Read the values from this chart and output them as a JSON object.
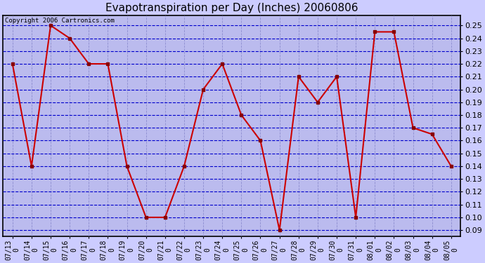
{
  "title": "Evapotranspiration per Day (Inches) 20060806",
  "copyright": "Copyright 2006 Cartronics.com",
  "x_labels": [
    "07/13",
    "07/14",
    "07/15",
    "07/16",
    "07/17",
    "07/18",
    "07/19",
    "07/20",
    "07/21",
    "07/22",
    "07/23",
    "07/24",
    "07/25",
    "07/26",
    "07/27",
    "07/28",
    "07/29",
    "07/30",
    "07/31",
    "08/01",
    "08/02",
    "08/03",
    "08/04",
    "08/05"
  ],
  "values": [
    0.22,
    0.14,
    0.25,
    0.24,
    0.22,
    0.22,
    0.14,
    0.1,
    0.1,
    0.14,
    0.2,
    0.22,
    0.18,
    0.16,
    0.09,
    0.21,
    0.19,
    0.21,
    0.1,
    0.245,
    0.245,
    0.17,
    0.165,
    0.14
  ],
  "ylim": [
    0.085,
    0.258
  ],
  "yticks": [
    0.09,
    0.1,
    0.11,
    0.12,
    0.13,
    0.14,
    0.15,
    0.16,
    0.17,
    0.18,
    0.19,
    0.2,
    0.21,
    0.22,
    0.23,
    0.24,
    0.25
  ],
  "line_color": "#cc0000",
  "marker_color": "#880000",
  "bg_color": "#ccccff",
  "plot_bg_color": "#bbbbee",
  "grid_major_color": "#0000cc",
  "grid_minor_color": "#8888cc",
  "title_fontsize": 11,
  "copyright_fontsize": 6.5,
  "tick_fontsize": 7,
  "ytick_fontsize": 8
}
